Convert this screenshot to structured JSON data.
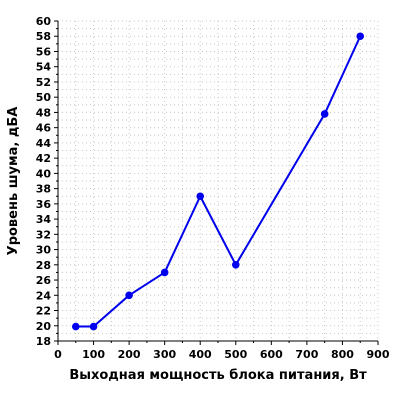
{
  "chart_data": {
    "type": "line",
    "title": "",
    "xlabel": "Выходная мощность блока питания, Вт",
    "ylabel": "Уровень шума, дБА",
    "xlim": [
      0,
      900
    ],
    "ylim": [
      18,
      60
    ],
    "x_ticks": [
      0,
      100,
      200,
      300,
      400,
      500,
      600,
      700,
      800,
      900
    ],
    "y_ticks": [
      18,
      20,
      22,
      24,
      26,
      28,
      30,
      32,
      34,
      36,
      38,
      40,
      42,
      44,
      46,
      48,
      50,
      52,
      54,
      56,
      58,
      60
    ],
    "x_minor_step": 50,
    "y_minor_step": 1,
    "grid": true,
    "legend": "none",
    "series": [
      {
        "color": "#0000ee",
        "x": [
          50,
          100,
          200,
          300,
          400,
          500,
          750,
          850
        ],
        "y": [
          19.9,
          19.9,
          24.0,
          27.0,
          37.0,
          28.0,
          47.8,
          58.0
        ]
      }
    ]
  }
}
